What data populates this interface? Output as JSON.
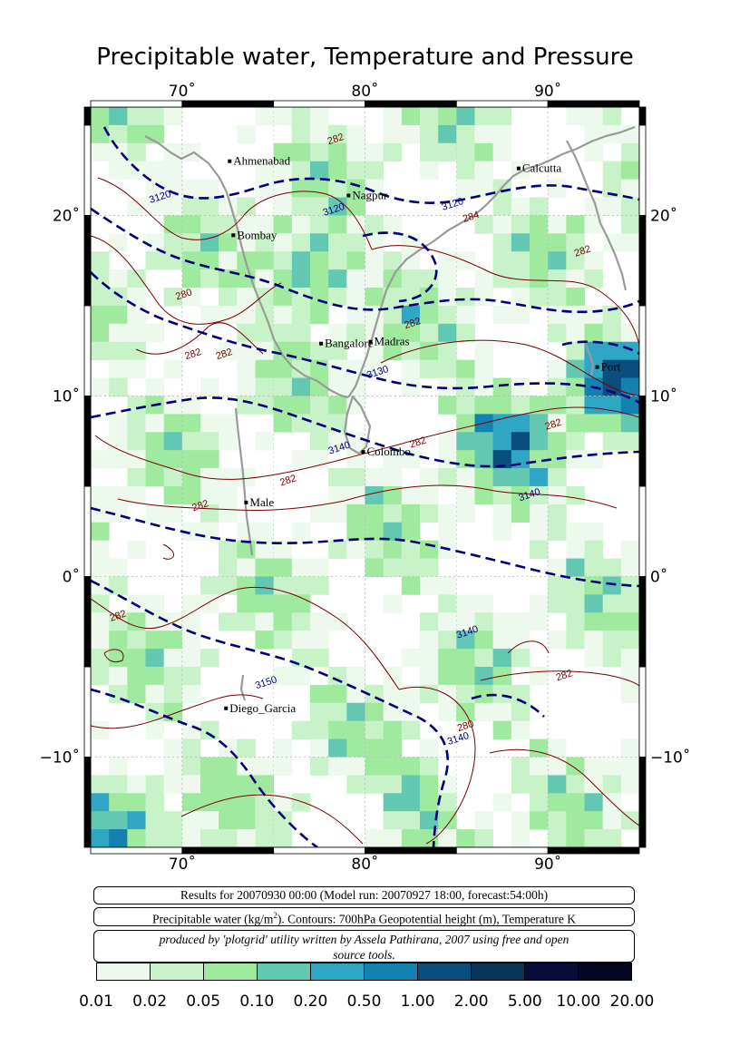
{
  "title": "Precipitable water, Temperature and Pressure",
  "map": {
    "lon_range": [
      65,
      95
    ],
    "lat_range": [
      -15,
      26
    ],
    "x_ticks": [
      {
        "value": 70,
        "label": "70˚"
      },
      {
        "value": 80,
        "label": "80˚"
      },
      {
        "value": 90,
        "label": "90˚"
      }
    ],
    "y_ticks": [
      {
        "value": 20,
        "label": "20˚"
      },
      {
        "value": 10,
        "label": "10˚"
      },
      {
        "value": 0,
        "label": "0˚"
      },
      {
        "value": -10,
        "label": "−10˚"
      }
    ],
    "cities": [
      {
        "name": "Ahmenabad",
        "lon": 72.6,
        "lat": 23.0
      },
      {
        "name": "Calcutta",
        "lon": 88.4,
        "lat": 22.6
      },
      {
        "name": "Nagpur",
        "lon": 79.1,
        "lat": 21.1
      },
      {
        "name": "Bombay",
        "lon": 72.8,
        "lat": 18.9
      },
      {
        "name": "Bangalore",
        "lon": 77.6,
        "lat": 12.9
      },
      {
        "name": "Madras",
        "lon": 80.3,
        "lat": 13.0
      },
      {
        "name": "Port",
        "lon": 92.7,
        "lat": 11.6
      },
      {
        "name": "Colombo",
        "lon": 79.9,
        "lat": 6.9
      },
      {
        "name": "Male",
        "lon": 73.5,
        "lat": 4.1
      },
      {
        "name": "Diego_Garcia",
        "lon": 72.4,
        "lat": -7.3
      }
    ],
    "contour_labels": [
      {
        "text": "3120",
        "lon": 68.8,
        "lat": 21.0,
        "color": "#00007a"
      },
      {
        "text": "3120",
        "lon": 78.3,
        "lat": 20.3,
        "color": "#00007a"
      },
      {
        "text": "3120",
        "lon": 84.8,
        "lat": 20.6,
        "color": "#00007a"
      },
      {
        "text": "3130",
        "lon": 80.7,
        "lat": 11.3,
        "color": "#00007a"
      },
      {
        "text": "3140",
        "lon": 78.6,
        "lat": 7.1,
        "color": "#00007a"
      },
      {
        "text": "3140",
        "lon": 89.0,
        "lat": 4.5,
        "color": "#00007a"
      },
      {
        "text": "3140",
        "lon": 85.6,
        "lat": -3.1,
        "color": "#00007a"
      },
      {
        "text": "3140",
        "lon": 85.1,
        "lat": -9.0,
        "color": "#00007a"
      },
      {
        "text": "3150",
        "lon": 74.6,
        "lat": -5.9,
        "color": "#00007a"
      },
      {
        "text": "282",
        "lon": 78.4,
        "lat": 24.2,
        "color": "#7a0000"
      },
      {
        "text": "284",
        "lon": 85.8,
        "lat": 19.9,
        "color": "#7a0000"
      },
      {
        "text": "282",
        "lon": 91.9,
        "lat": 18.0,
        "color": "#7a0000"
      },
      {
        "text": "280",
        "lon": 70.1,
        "lat": 15.6,
        "color": "#7a0000"
      },
      {
        "text": "282",
        "lon": 70.6,
        "lat": 12.3,
        "color": "#7a0000"
      },
      {
        "text": "282",
        "lon": 72.3,
        "lat": 12.3,
        "color": "#7a0000"
      },
      {
        "text": "282",
        "lon": 82.6,
        "lat": 14.0,
        "color": "#7a0000"
      },
      {
        "text": "282",
        "lon": 82.9,
        "lat": 7.4,
        "color": "#7a0000"
      },
      {
        "text": "282",
        "lon": 90.3,
        "lat": 8.4,
        "color": "#7a0000"
      },
      {
        "text": "282",
        "lon": 75.8,
        "lat": 5.3,
        "color": "#7a0000"
      },
      {
        "text": "282",
        "lon": 71.0,
        "lat": 3.9,
        "color": "#7a0000"
      },
      {
        "text": "282",
        "lon": 66.5,
        "lat": -2.2,
        "color": "#7a0000"
      },
      {
        "text": "282",
        "lon": 90.9,
        "lat": -5.5,
        "color": "#7a0000"
      },
      {
        "text": "280",
        "lon": 85.5,
        "lat": -8.3,
        "color": "#7a0000"
      }
    ]
  },
  "info": {
    "results": "Results for 20070930 00:00 (Model run: 20070927 18:00, forecast:54:00h)",
    "legend_prefix": "Precipitable water (kg/m",
    "legend_sup": "2",
    "legend_suffix": ").  Contours: 700hPa Geopotential height (m), Temperature K",
    "credit_line1": "produced by 'plotgrid' utility written by Assela Pathirana, 2007 using free and open",
    "credit_line2": "source tools."
  },
  "colorbar": {
    "colors": [
      "#eef9ee",
      "#c8f3c8",
      "#a0eaa0",
      "#63c8b1",
      "#2fa6c4",
      "#1382b0",
      "#0a4e7e",
      "#08345a",
      "#070c3a",
      "#040824",
      "#02020f"
    ],
    "labels": [
      "0.01",
      "0.02",
      "0.05",
      "0.10",
      "0.20",
      "0.50",
      "1.00",
      "2.00",
      "5.00",
      "10.00",
      "20.00"
    ]
  }
}
